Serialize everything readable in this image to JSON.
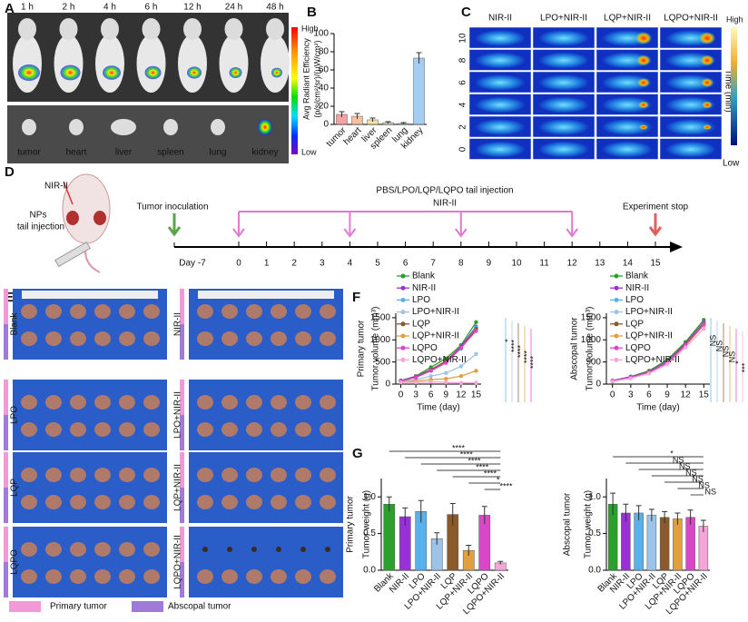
{
  "panels": {
    "labels": [
      "A",
      "B",
      "C",
      "D",
      "E",
      "F",
      "G"
    ]
  },
  "imaging": {
    "times": [
      "1 h",
      "2 h",
      "4 h",
      "6 h",
      "12 h",
      "24 h",
      "48 h"
    ],
    "scale_high": "High",
    "scale_low": "Low",
    "organs": [
      "tumor",
      "heart",
      "liver",
      "spleen",
      "lung",
      "kidney"
    ]
  },
  "thermal": {
    "columns": [
      "NIR-II",
      "LPO+NIR-II",
      "LQP+NIR-II",
      "LQPO+NIR-II"
    ],
    "ylabel": "Time (min)",
    "rows": [
      10,
      8,
      6,
      4,
      2,
      0
    ],
    "scale_high": "High",
    "scale_low": "Low"
  },
  "schedule": {
    "laser": "NIR-II",
    "injection_note": [
      "NPs",
      "tail injection"
    ],
    "inoculation": "Tumor inoculation",
    "start": "Day -7",
    "treatment": "PBS/LPO/LQP/LQPO tail injection",
    "treatment_laser": "NIR-II",
    "stop": "Experiment stop",
    "days": [
      0,
      1,
      2,
      3,
      4,
      5,
      6,
      7,
      8,
      9,
      10,
      11,
      12,
      13,
      14,
      15
    ]
  },
  "photos": {
    "groups": [
      "Blank",
      "NIR-II",
      "LPO",
      "LPO+NIR-II",
      "LQP",
      "LQP+NIR-II",
      "LQPO",
      "LQPO+NIR-II"
    ],
    "legend": [
      "Primary tumor",
      "Abscopal tumor"
    ]
  },
  "chart_data": [
    {
      "type": "bar",
      "ylabel": [
        "Avg Radiant Efficiency",
        "(p/s/cm²/sr)/(µW/cm²)"
      ],
      "categories": [
        "tumor",
        "heart",
        "liver",
        "spleen",
        "lung",
        "kidney"
      ],
      "values": [
        11,
        9,
        5,
        2,
        1,
        73
      ],
      "errors": [
        3,
        3,
        2,
        1,
        1,
        6
      ],
      "colors": [
        "#f08a8a",
        "#f4b28a",
        "#f3dc8c",
        "#c4e4a4",
        "#a8dccc",
        "#8fc0ee"
      ],
      "ylim": [
        0,
        100
      ],
      "yticks": [
        0,
        20,
        40,
        60,
        80,
        100
      ]
    },
    {
      "type": "line",
      "side_label": "Primary tumor",
      "ylabel": "Tumor volume (mm³)",
      "xlabel": "Time (day)",
      "x": [
        0,
        3,
        6,
        9,
        12,
        15
      ],
      "xlim": [
        -1,
        16
      ],
      "xticks": [
        0,
        3,
        6,
        9,
        12,
        15
      ],
      "ylim": [
        0,
        1600
      ],
      "yticks": [
        0,
        500,
        1000,
        1500
      ],
      "series": [
        {
          "name": "Blank",
          "color": "#2ca02c",
          "values": [
            80,
            180,
            380,
            580,
            880,
            1400
          ]
        },
        {
          "name": "NIR-II",
          "color": "#9b30d9",
          "values": [
            80,
            170,
            330,
            520,
            850,
            1300
          ]
        },
        {
          "name": "LPO",
          "color": "#5ab0e8",
          "values": [
            70,
            150,
            300,
            500,
            800,
            1280
          ]
        },
        {
          "name": "LPO+NIR-II",
          "color": "#9cc4e8",
          "values": [
            60,
            100,
            180,
            250,
            400,
            680
          ]
        },
        {
          "name": "LQP",
          "color": "#8b5a2b",
          "values": [
            70,
            160,
            320,
            520,
            820,
            1250
          ]
        },
        {
          "name": "LQP+NIR-II",
          "color": "#e0a040",
          "values": [
            50,
            70,
            100,
            120,
            180,
            300
          ]
        },
        {
          "name": "LQPO",
          "color": "#d946c8",
          "values": [
            70,
            150,
            300,
            480,
            820,
            1200
          ]
        },
        {
          "name": "LQPO+NIR-II",
          "color": "#f4a6d8",
          "values": [
            40,
            40,
            50,
            40,
            30,
            30
          ]
        }
      ],
      "annotations": [
        "*",
        "****",
        "****",
        "****",
        "****"
      ]
    },
    {
      "type": "line",
      "side_label": "Abscopal tumor",
      "ylabel": "Tumor volume (mm³)",
      "xlabel": "Time (day)",
      "x": [
        0,
        3,
        6,
        9,
        12,
        15
      ],
      "xlim": [
        -1,
        16
      ],
      "xticks": [
        0,
        3,
        6,
        9,
        12,
        15
      ],
      "ylim": [
        0,
        1600
      ],
      "yticks": [
        0,
        500,
        1000,
        1500
      ],
      "series": [
        {
          "name": "Blank",
          "color": "#2ca02c",
          "values": [
            80,
            170,
            300,
            550,
            950,
            1450
          ]
        },
        {
          "name": "NIR-II",
          "color": "#9b30d9",
          "values": [
            80,
            160,
            280,
            520,
            920,
            1400
          ]
        },
        {
          "name": "LPO",
          "color": "#5ab0e8",
          "values": [
            70,
            150,
            270,
            500,
            900,
            1380
          ]
        },
        {
          "name": "LPO+NIR-II",
          "color": "#9cc4e8",
          "values": [
            70,
            140,
            260,
            480,
            880,
            1350
          ]
        },
        {
          "name": "LQP",
          "color": "#8b5a2b",
          "values": [
            70,
            150,
            270,
            490,
            900,
            1370
          ]
        },
        {
          "name": "LQP+NIR-II",
          "color": "#e0a040",
          "values": [
            60,
            140,
            250,
            470,
            870,
            1330
          ]
        },
        {
          "name": "LQPO",
          "color": "#d946c8",
          "values": [
            70,
            150,
            260,
            480,
            880,
            1350
          ]
        },
        {
          "name": "LQPO+NIR-II",
          "color": "#f4a6d8",
          "values": [
            60,
            130,
            240,
            450,
            830,
            1250
          ]
        }
      ],
      "annotations": [
        "NS",
        "NS",
        "NS",
        "NS",
        "*",
        "***"
      ]
    },
    {
      "type": "bar",
      "side_label": "Primary tumor",
      "ylabel": "Tumor weight (g)",
      "categories": [
        "Blank",
        "NIR-II",
        "LPO",
        "LPO+NIR-II",
        "LQP",
        "LQP+NIR-II",
        "LQPO",
        "LQPO+NIR-II"
      ],
      "values": [
        0.9,
        0.73,
        0.8,
        0.43,
        0.76,
        0.27,
        0.75,
        0.1
      ],
      "errors": [
        0.1,
        0.12,
        0.15,
        0.08,
        0.15,
        0.07,
        0.12,
        0.02
      ],
      "colors": [
        "#2ca02c",
        "#9b30d9",
        "#5ab0e8",
        "#9cc4e8",
        "#8b5a2b",
        "#e0a040",
        "#d946c8",
        "#f4a6d8"
      ],
      "ylim": [
        0,
        1.25
      ],
      "yticks": [
        {
          "value": 0,
          "label": "0.0"
        },
        {
          "value": 0.5,
          "label": "0.5"
        },
        {
          "value": 1,
          "label": "1.0"
        }
      ],
      "annotations": [
        "****",
        "****",
        "****",
        "****",
        "****",
        "*",
        "****"
      ]
    },
    {
      "type": "bar",
      "side_label": "Abscopal tumor",
      "ylabel": "Tumor weight (g)",
      "categories": [
        "Blank",
        "NIR-II",
        "LPO",
        "LPO+NIR-II",
        "LQP",
        "LQP+NIR-II",
        "LQPO",
        "LQPO+NIR-II"
      ],
      "values": [
        0.9,
        0.78,
        0.78,
        0.75,
        0.72,
        0.7,
        0.72,
        0.6
      ],
      "errors": [
        0.15,
        0.12,
        0.1,
        0.08,
        0.08,
        0.08,
        0.1,
        0.08
      ],
      "colors": [
        "#2ca02c",
        "#9b30d9",
        "#5ab0e8",
        "#9cc4e8",
        "#8b5a2b",
        "#e0a040",
        "#d946c8",
        "#f4a6d8"
      ],
      "ylim": [
        0,
        1.25
      ],
      "yticks": [
        {
          "value": 0,
          "label": "0.0"
        },
        {
          "value": 0.5,
          "label": "0.5"
        },
        {
          "value": 1,
          "label": "1.0"
        }
      ],
      "annotations": [
        "*",
        "NS",
        "NS",
        "NS",
        "NS",
        "NS",
        "NS"
      ]
    }
  ]
}
